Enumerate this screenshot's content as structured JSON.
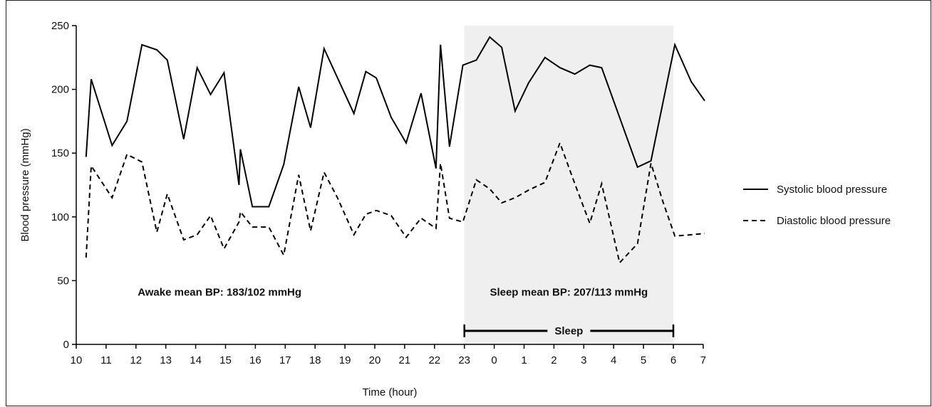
{
  "chart_data": {
    "type": "line",
    "title": "",
    "xlabel": "Time (hour)",
    "ylabel": "Blood pressure (mmHg)",
    "ylim": [
      0,
      250
    ],
    "y_ticks": [
      0,
      50,
      100,
      150,
      200,
      250
    ],
    "x_ticks": [
      "10",
      "11",
      "12",
      "13",
      "14",
      "15",
      "16",
      "17",
      "18",
      "19",
      "20",
      "21",
      "22",
      "23",
      "0",
      "1",
      "2",
      "3",
      "4",
      "5",
      "6",
      "7"
    ],
    "x_unit": "hour index from 10:00 (0 = 10:00, 13 = 23:00, 21 = 07:00)",
    "series": [
      {
        "name": "Systolic blood pressure",
        "style": "solid",
        "x": [
          0.33,
          0.5,
          1.2,
          1.7,
          2.2,
          2.7,
          3.05,
          3.6,
          4.05,
          4.5,
          4.95,
          5.45,
          5.5,
          5.9,
          6.45,
          6.95,
          7.45,
          7.85,
          8.3,
          9.3,
          9.7,
          10.05,
          10.55,
          11.05,
          11.55,
          12.05,
          12.2,
          12.5,
          12.95,
          13.4,
          13.85,
          14.25,
          14.7,
          15.15,
          15.7,
          16.2,
          16.7,
          17.2,
          17.6,
          18.8,
          19.25,
          20.05,
          20.6,
          21.05
        ],
        "values": [
          147,
          208,
          156,
          175,
          235,
          231,
          223,
          161,
          217,
          196,
          213,
          125,
          153,
          108,
          108,
          141,
          202,
          170,
          232,
          181,
          214,
          209,
          178,
          158,
          197,
          138,
          235,
          155,
          219,
          223,
          241,
          233,
          183,
          205,
          225,
          217,
          212,
          219,
          217,
          139,
          144,
          235,
          206,
          191
        ]
      },
      {
        "name": "Diastolic blood pressure",
        "style": "dashed",
        "x": [
          0.33,
          0.5,
          1.2,
          1.7,
          2.2,
          2.7,
          3.05,
          3.6,
          4.05,
          4.5,
          4.95,
          5.45,
          5.5,
          5.9,
          6.45,
          6.95,
          7.45,
          7.85,
          8.3,
          8.75,
          9.3,
          9.7,
          10.05,
          10.55,
          11.05,
          11.55,
          12.05,
          12.2,
          12.5,
          12.95,
          13.4,
          13.85,
          14.25,
          14.7,
          15.15,
          15.7,
          16.2,
          16.7,
          17.2,
          17.6,
          18.2,
          18.8,
          19.25,
          19.65,
          20.05,
          20.6,
          21.05
        ],
        "values": [
          68,
          140,
          115,
          149,
          143,
          88,
          118,
          82,
          86,
          101,
          75,
          96,
          104,
          92,
          92,
          70,
          133,
          89,
          135,
          115,
          86,
          102,
          105,
          101,
          84,
          99,
          91,
          142,
          99,
          96,
          129,
          122,
          111,
          115,
          121,
          127,
          158,
          126,
          95,
          126,
          64,
          79,
          142,
          112,
          85,
          86,
          87
        ]
      }
    ],
    "shaded_region": {
      "from": 13,
      "to": 20,
      "label": "Sleep",
      "color": "#efefef"
    },
    "annotations": [
      {
        "text": "Awake mean BP: 183/102 mmHg",
        "x": 4.8,
        "y": 35
      },
      {
        "text": "Sleep mean BP: 207/113 mmHg",
        "x": 16.5,
        "y": 35
      }
    ],
    "legend_placement": "right",
    "grid": false,
    "colors": {
      "line": "#000000",
      "shade": "#efefef"
    }
  }
}
